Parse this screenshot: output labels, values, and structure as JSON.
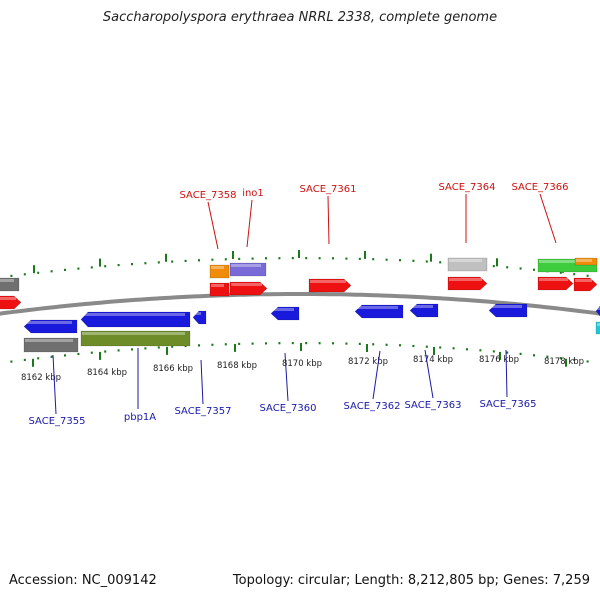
{
  "title": "Saccharopolyspora erythraea NRRL 2338, complete genome",
  "footer": {
    "accession": "Accession: NC_009142",
    "summary": "Topology: circular; Length: 8,212,805 bp; Genes: 7,259"
  },
  "colors": {
    "top_strand_gene": "#ee1111",
    "bottom_strand_gene": "#1a1adc",
    "top_label": "#cc1111",
    "bottom_label": "#1a1aa8",
    "tick": "#1a7a1a",
    "backbone": "#8a8a8a",
    "feature_orange": "#f08c0a",
    "feature_purple": "#7a6ad8",
    "feature_grey": "#c0c0c0",
    "feature_darkgrey": "#707070",
    "feature_green": "#3ccc3c",
    "feature_olive": "#6e8c28",
    "feature_cyan": "#22c8d8"
  },
  "scale_labels": [
    "8162 kbp",
    "8164 kbp",
    "8166 kbp",
    "8168 kbp",
    "8170 kbp",
    "8172 kbp",
    "8174 kbp",
    "8176 kbp",
    "8178 kbp"
  ],
  "top_gene_labels": [
    "SACE_7358",
    "ino1",
    "SACE_7361",
    "SACE_7364",
    "SACE_7366"
  ],
  "bottom_gene_labels": [
    "SACE_7355",
    "pbp1A",
    "SACE_7357",
    "SACE_7360",
    "SACE_7362",
    "SACE_7363",
    "SACE_7365"
  ]
}
